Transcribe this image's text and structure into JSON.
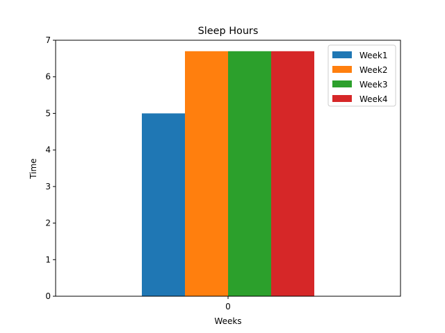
{
  "chart_data": {
    "type": "bar",
    "title": "Sleep Hours",
    "xlabel": "Weeks",
    "ylabel": "Time",
    "categories": [
      "0"
    ],
    "series": [
      {
        "name": "Week1",
        "values": [
          5.0
        ],
        "color": "#1f77b4"
      },
      {
        "name": "Week2",
        "values": [
          6.7
        ],
        "color": "#ff7f0e"
      },
      {
        "name": "Week3",
        "values": [
          6.7
        ],
        "color": "#2ca02c"
      },
      {
        "name": "Week4",
        "values": [
          6.7
        ],
        "color": "#d62728"
      }
    ],
    "ylim": [
      0,
      7
    ],
    "yticks": [
      "0",
      "1",
      "2",
      "3",
      "4",
      "5",
      "6",
      "7"
    ],
    "grid": false,
    "legend": "top-right"
  }
}
